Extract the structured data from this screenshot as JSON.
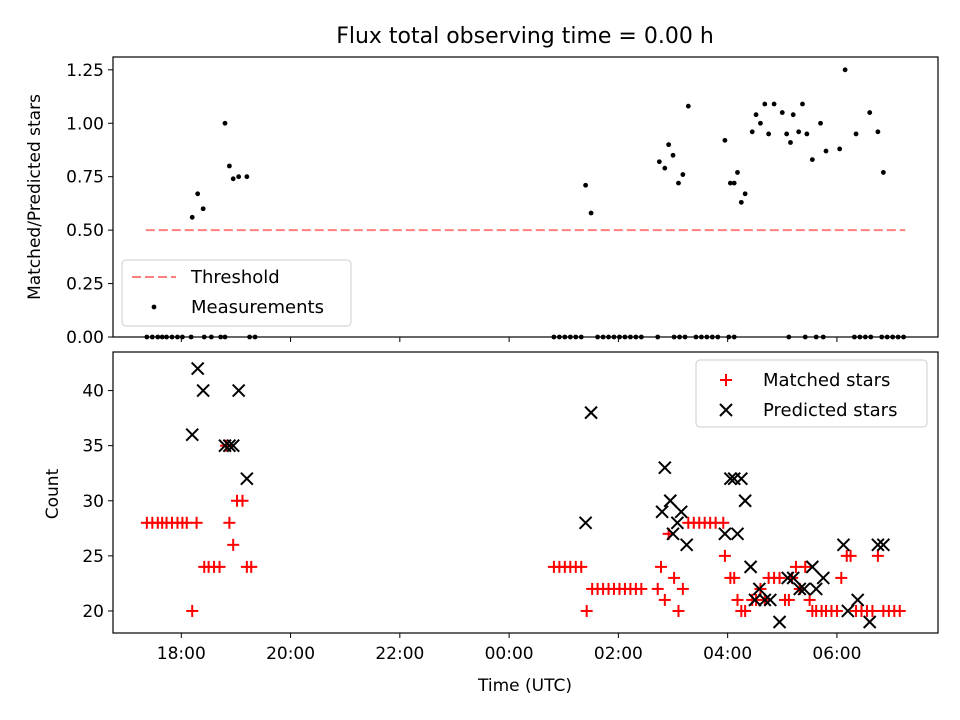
{
  "chart_data": [
    {
      "type": "scatter",
      "title": "Flux total observing time = 0.00 h",
      "xlabel": "",
      "ylabel": "Matched/Predicted stars",
      "ylim": [
        0.0,
        1.31
      ],
      "xlim_hours": [
        16.75,
        31.85
      ],
      "yticks": [
        0.0,
        0.25,
        0.5,
        0.75,
        1.0,
        1.25
      ],
      "ytick_labels": [
        "0.00",
        "0.25",
        "0.50",
        "0.75",
        "1.00",
        "1.25"
      ],
      "legend_position": "lower-left",
      "threshold": {
        "name": "Threshold",
        "value": 0.5,
        "x_range": [
          17.35,
          31.25
        ],
        "color": "#ff7f7f",
        "style": "dashed"
      },
      "series": [
        {
          "name": "Measurements",
          "color": "#000000",
          "marker": "dot",
          "points": [
            [
              17.37,
              0
            ],
            [
              17.47,
              0
            ],
            [
              17.57,
              0
            ],
            [
              17.65,
              0
            ],
            [
              17.73,
              0
            ],
            [
              17.83,
              0
            ],
            [
              17.93,
              0
            ],
            [
              18.02,
              0
            ],
            [
              18.18,
              0
            ],
            [
              18.42,
              0
            ],
            [
              18.55,
              0
            ],
            [
              18.72,
              0
            ],
            [
              18.8,
              0
            ],
            [
              19.25,
              0
            ],
            [
              19.35,
              0
            ],
            [
              18.2,
              0.56
            ],
            [
              18.3,
              0.67
            ],
            [
              18.4,
              0.6
            ],
            [
              18.8,
              1.0
            ],
            [
              18.88,
              0.8
            ],
            [
              18.95,
              0.74
            ],
            [
              19.05,
              0.75
            ],
            [
              19.2,
              0.75
            ],
            [
              24.82,
              0
            ],
            [
              24.92,
              0
            ],
            [
              25.02,
              0
            ],
            [
              25.12,
              0
            ],
            [
              25.22,
              0
            ],
            [
              25.32,
              0
            ],
            [
              25.62,
              0
            ],
            [
              25.72,
              0
            ],
            [
              25.82,
              0
            ],
            [
              25.92,
              0
            ],
            [
              26.02,
              0
            ],
            [
              26.12,
              0
            ],
            [
              26.22,
              0
            ],
            [
              26.32,
              0
            ],
            [
              26.42,
              0
            ],
            [
              26.72,
              0
            ],
            [
              27.02,
              0
            ],
            [
              27.12,
              0
            ],
            [
              27.22,
              0
            ],
            [
              27.42,
              0
            ],
            [
              27.52,
              0
            ],
            [
              27.62,
              0
            ],
            [
              27.72,
              0
            ],
            [
              27.82,
              0
            ],
            [
              28.02,
              0
            ],
            [
              28.12,
              0
            ],
            [
              29.12,
              0
            ],
            [
              29.42,
              0
            ],
            [
              29.62,
              0
            ],
            [
              29.75,
              0
            ],
            [
              30.32,
              0
            ],
            [
              30.42,
              0
            ],
            [
              30.52,
              0
            ],
            [
              30.62,
              0
            ],
            [
              30.82,
              0
            ],
            [
              30.92,
              0
            ],
            [
              31.02,
              0
            ],
            [
              31.12,
              0
            ],
            [
              31.22,
              0
            ],
            [
              25.4,
              0.71
            ],
            [
              25.5,
              0.58
            ],
            [
              26.75,
              0.82
            ],
            [
              26.85,
              0.79
            ],
            [
              26.92,
              0.9
            ],
            [
              27.0,
              0.85
            ],
            [
              27.1,
              0.72
            ],
            [
              27.18,
              0.76
            ],
            [
              27.28,
              1.08
            ],
            [
              27.95,
              0.92
            ],
            [
              28.05,
              0.72
            ],
            [
              28.12,
              0.72
            ],
            [
              28.18,
              0.77
            ],
            [
              28.25,
              0.63
            ],
            [
              28.32,
              0.67
            ],
            [
              28.45,
              0.96
            ],
            [
              28.52,
              1.04
            ],
            [
              28.6,
              1.0
            ],
            [
              28.68,
              1.09
            ],
            [
              28.75,
              0.95
            ],
            [
              28.85,
              1.09
            ],
            [
              29.0,
              1.05
            ],
            [
              29.08,
              0.95
            ],
            [
              29.15,
              0.91
            ],
            [
              29.2,
              1.04
            ],
            [
              29.3,
              0.96
            ],
            [
              29.37,
              1.09
            ],
            [
              29.45,
              0.95
            ],
            [
              29.55,
              0.83
            ],
            [
              29.7,
              1.0
            ],
            [
              29.8,
              0.87
            ],
            [
              30.05,
              0.88
            ],
            [
              30.15,
              1.25
            ],
            [
              30.35,
              0.95
            ],
            [
              30.6,
              1.05
            ],
            [
              30.75,
              0.96
            ],
            [
              30.85,
              0.77
            ]
          ]
        }
      ]
    },
    {
      "type": "scatter",
      "xlabel": "Time (UTC)",
      "ylabel": "Count",
      "ylim": [
        18,
        43.5
      ],
      "xlim_hours": [
        16.75,
        31.85
      ],
      "yticks": [
        20,
        25,
        30,
        35,
        40
      ],
      "ytick_labels": [
        "20",
        "25",
        "30",
        "35",
        "40"
      ],
      "xticks_hours": [
        18,
        20,
        22,
        24,
        26,
        28,
        30
      ],
      "xtick_labels": [
        "18:00",
        "20:00",
        "22:00",
        "00:00",
        "02:00",
        "04:00",
        "06:00"
      ],
      "legend_position": "upper-right",
      "series": [
        {
          "name": "Matched stars",
          "color": "#ff0000",
          "marker": "plus",
          "points": [
            [
              17.37,
              28
            ],
            [
              17.47,
              28
            ],
            [
              17.57,
              28
            ],
            [
              17.65,
              28
            ],
            [
              17.73,
              28
            ],
            [
              17.83,
              28
            ],
            [
              17.93,
              28
            ],
            [
              18.02,
              28
            ],
            [
              18.1,
              28
            ],
            [
              18.28,
              28
            ],
            [
              18.2,
              20
            ],
            [
              18.42,
              24
            ],
            [
              18.5,
              24
            ],
            [
              18.6,
              24
            ],
            [
              18.7,
              24
            ],
            [
              18.82,
              35
            ],
            [
              18.88,
              28
            ],
            [
              18.95,
              26
            ],
            [
              19.02,
              30
            ],
            [
              19.12,
              30
            ],
            [
              19.2,
              24
            ],
            [
              19.28,
              24
            ],
            [
              24.82,
              24
            ],
            [
              24.92,
              24
            ],
            [
              25.02,
              24
            ],
            [
              25.12,
              24
            ],
            [
              25.22,
              24
            ],
            [
              25.32,
              24
            ],
            [
              25.42,
              20
            ],
            [
              25.52,
              22
            ],
            [
              25.62,
              22
            ],
            [
              25.72,
              22
            ],
            [
              25.82,
              22
            ],
            [
              25.92,
              22
            ],
            [
              26.02,
              22
            ],
            [
              26.12,
              22
            ],
            [
              26.22,
              22
            ],
            [
              26.32,
              22
            ],
            [
              26.42,
              22
            ],
            [
              26.72,
              22
            ],
            [
              26.78,
              24
            ],
            [
              26.85,
              21
            ],
            [
              26.92,
              27
            ],
            [
              27.02,
              23
            ],
            [
              27.1,
              20
            ],
            [
              27.18,
              22
            ],
            [
              27.28,
              28
            ],
            [
              27.38,
              28
            ],
            [
              27.48,
              28
            ],
            [
              27.58,
              28
            ],
            [
              27.68,
              28
            ],
            [
              27.78,
              28
            ],
            [
              27.92,
              28
            ],
            [
              27.95,
              25
            ],
            [
              28.05,
              23
            ],
            [
              28.12,
              23
            ],
            [
              28.18,
              21
            ],
            [
              28.25,
              20
            ],
            [
              28.32,
              20
            ],
            [
              28.45,
              21
            ],
            [
              28.52,
              21
            ],
            [
              28.6,
              22
            ],
            [
              28.68,
              21
            ],
            [
              28.75,
              23
            ],
            [
              28.85,
              23
            ],
            [
              28.95,
              23
            ],
            [
              29.05,
              21
            ],
            [
              29.12,
              21
            ],
            [
              29.18,
              23
            ],
            [
              29.25,
              24
            ],
            [
              29.32,
              22
            ],
            [
              29.42,
              24
            ],
            [
              29.5,
              21
            ],
            [
              29.55,
              20
            ],
            [
              29.62,
              20
            ],
            [
              29.72,
              20
            ],
            [
              29.8,
              20
            ],
            [
              29.9,
              20
            ],
            [
              30.0,
              20
            ],
            [
              30.08,
              23
            ],
            [
              30.18,
              25
            ],
            [
              30.25,
              25
            ],
            [
              30.35,
              20
            ],
            [
              30.45,
              20
            ],
            [
              30.55,
              20
            ],
            [
              30.65,
              20
            ],
            [
              30.75,
              25
            ],
            [
              30.85,
              20
            ],
            [
              30.95,
              20
            ],
            [
              31.05,
              20
            ],
            [
              31.15,
              20
            ]
          ]
        },
        {
          "name": "Predicted stars",
          "color": "#000000",
          "marker": "cross",
          "points": [
            [
              18.2,
              36
            ],
            [
              18.3,
              42
            ],
            [
              18.4,
              40
            ],
            [
              18.8,
              35
            ],
            [
              18.88,
              35
            ],
            [
              18.95,
              35
            ],
            [
              19.05,
              40
            ],
            [
              19.2,
              32
            ],
            [
              25.4,
              28
            ],
            [
              25.5,
              38
            ],
            [
              26.8,
              29
            ],
            [
              26.85,
              33
            ],
            [
              26.95,
              30
            ],
            [
              27.0,
              27
            ],
            [
              27.08,
              28
            ],
            [
              27.15,
              29
            ],
            [
              27.25,
              26
            ],
            [
              27.95,
              27
            ],
            [
              28.05,
              32
            ],
            [
              28.12,
              32
            ],
            [
              28.18,
              27
            ],
            [
              28.25,
              32
            ],
            [
              28.32,
              30
            ],
            [
              28.42,
              24
            ],
            [
              28.5,
              21
            ],
            [
              28.58,
              22
            ],
            [
              28.68,
              21
            ],
            [
              28.78,
              21
            ],
            [
              28.95,
              19
            ],
            [
              29.1,
              23
            ],
            [
              29.2,
              23
            ],
            [
              29.32,
              22
            ],
            [
              29.4,
              22
            ],
            [
              29.55,
              24
            ],
            [
              29.62,
              22
            ],
            [
              29.75,
              23
            ],
            [
              30.12,
              26
            ],
            [
              30.2,
              20
            ],
            [
              30.38,
              21
            ],
            [
              30.6,
              19
            ],
            [
              30.75,
              26
            ],
            [
              30.85,
              26
            ]
          ]
        }
      ]
    }
  ]
}
